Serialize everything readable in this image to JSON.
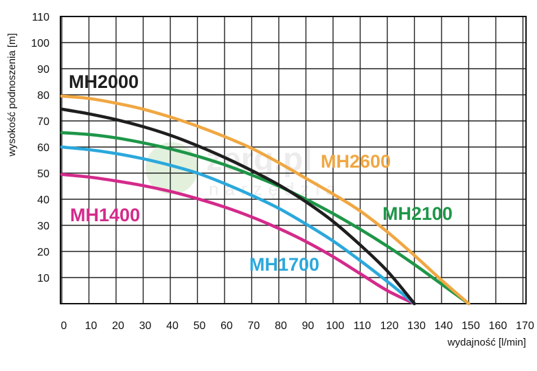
{
  "chart_data": {
    "type": "line",
    "xlabel": "wydajność [l/min]",
    "ylabel": "wysokość podnoszenia [m]",
    "xlim": [
      0,
      170
    ],
    "ylim": [
      0,
      110
    ],
    "x_ticks": [
      0,
      10,
      20,
      30,
      40,
      50,
      60,
      70,
      80,
      90,
      100,
      110,
      120,
      130,
      140,
      150,
      160,
      170
    ],
    "y_ticks": [
      10,
      20,
      30,
      40,
      50,
      60,
      70,
      80,
      90,
      100,
      110
    ],
    "grid": true,
    "legend": "inline labels",
    "watermark": {
      "main": "zerg.pl",
      "sub": "narzędzia"
    },
    "series": [
      {
        "name": "MH2600",
        "color": "#F0A742",
        "x": [
          0,
          10,
          20,
          30,
          40,
          50,
          60,
          70,
          80,
          90,
          100,
          110,
          120,
          130,
          140,
          150
        ],
        "y": [
          79.5,
          78.6,
          76.8,
          74.5,
          71.5,
          68,
          64,
          59.5,
          54,
          48,
          42,
          35.5,
          27.5,
          18.5,
          9,
          0
        ]
      },
      {
        "name": "MH2000",
        "color": "#1E1E1E",
        "x": [
          0,
          10,
          20,
          30,
          40,
          50,
          60,
          70,
          80,
          90,
          100,
          110,
          120,
          130
        ],
        "y": [
          74.5,
          72.7,
          70.5,
          67.8,
          64.5,
          60.5,
          56,
          51,
          45.5,
          39,
          31.5,
          22.5,
          12.5,
          0
        ]
      },
      {
        "name": "MH2100",
        "color": "#1E9648",
        "x": [
          0,
          10,
          20,
          30,
          40,
          50,
          60,
          70,
          80,
          90,
          100,
          110,
          120,
          130,
          140,
          150
        ],
        "y": [
          65.5,
          64.8,
          63.5,
          61.6,
          59.3,
          56.5,
          53.2,
          49.3,
          45,
          40,
          34.5,
          28.5,
          22,
          15,
          7.5,
          0
        ]
      },
      {
        "name": "MH1700",
        "color": "#2BA8DC",
        "x": [
          0,
          10,
          20,
          30,
          40,
          50,
          60,
          70,
          80,
          90,
          100,
          110,
          120,
          130
        ],
        "y": [
          60,
          59,
          57.5,
          55.5,
          53,
          50,
          46,
          41.5,
          36.5,
          30.5,
          24,
          16.5,
          8.5,
          0
        ]
      },
      {
        "name": "MH1400",
        "color": "#D42A8B",
        "x": [
          0,
          10,
          20,
          30,
          40,
          50,
          60,
          70,
          80,
          90,
          100,
          110,
          120,
          130
        ],
        "y": [
          49.5,
          48.5,
          47,
          45.2,
          43,
          40.2,
          37,
          33.2,
          28.8,
          23.8,
          18,
          11.5,
          5,
          0
        ]
      }
    ]
  }
}
